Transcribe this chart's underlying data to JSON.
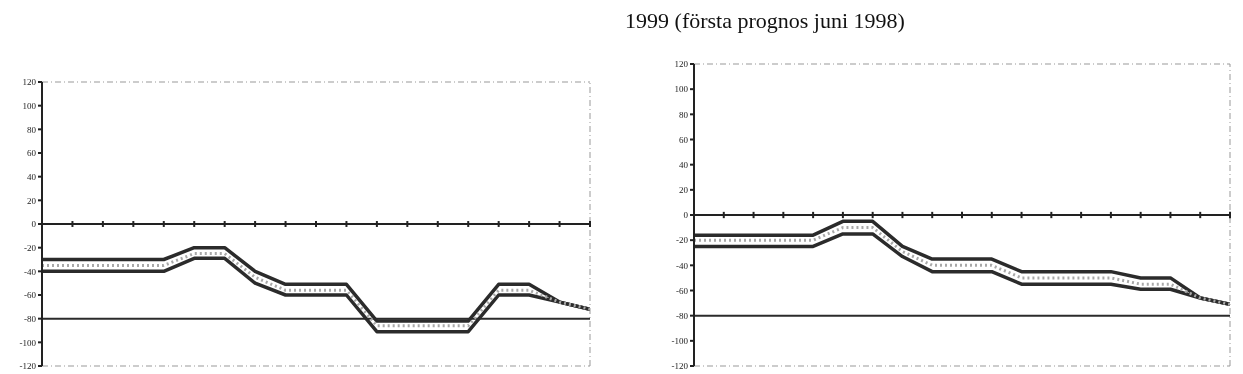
{
  "chart_data": [
    {
      "type": "line",
      "categories": [
        null,
        null,
        null,
        null,
        null,
        null,
        null,
        null,
        null,
        null,
        null,
        null,
        null,
        null,
        null,
        null,
        null,
        null,
        null
      ],
      "series": [
        {
          "color": "#2b2b2b",
          "values": [
            -30,
            -30,
            -30,
            -30,
            -30,
            -20,
            -20,
            -40,
            -51,
            -51,
            -51,
            -82,
            -82,
            -82,
            -82,
            -51,
            -51,
            -66,
            -72
          ]
        },
        {
          "color": "#2b2b2b",
          "values": [
            -40,
            -40,
            -40,
            -40,
            -40,
            -29,
            -29,
            -50,
            -60,
            -60,
            -60,
            -91,
            -91,
            -91,
            -91,
            -60,
            -60,
            -66,
            -72
          ]
        },
        {
          "color": "#a8a8a8",
          "line_style": "dotted",
          "values": [
            -35,
            -35,
            -35,
            -35,
            -35,
            -25,
            -25,
            -45,
            -56,
            -56,
            -56,
            -86,
            -86,
            -86,
            -86,
            -56,
            -56,
            -66,
            -72
          ]
        }
      ],
      "ylim": [
        -120,
        120
      ],
      "yticks": [
        -120,
        -100,
        -80,
        -60,
        -40,
        -20,
        0,
        20,
        40,
        60,
        80,
        100,
        120
      ],
      "ref_lines": [
        {
          "axis": "y",
          "value": -80,
          "color": "#2b2b2b"
        }
      ],
      "tick_labels": "y",
      "marker": "none",
      "grid": false,
      "legend": false
    },
    {
      "type": "line",
      "title": "1999 (första prognos juni 1998)",
      "categories": [
        null,
        null,
        null,
        null,
        null,
        null,
        null,
        null,
        null,
        null,
        null,
        null,
        null,
        null,
        null,
        null,
        null,
        null,
        null
      ],
      "series": [
        {
          "color": "#2b2b2b",
          "values": [
            -16,
            -16,
            -16,
            -16,
            -16,
            -5,
            -5,
            -25,
            -35,
            -35,
            -35,
            -45,
            -45,
            -45,
            -45,
            -50,
            -50,
            -66,
            -71
          ]
        },
        {
          "color": "#2b2b2b",
          "values": [
            -25,
            -25,
            -25,
            -25,
            -25,
            -15,
            -15,
            -33,
            -45,
            -45,
            -45,
            -55,
            -55,
            -55,
            -55,
            -59,
            -59,
            -66,
            -71
          ]
        },
        {
          "color": "#a8a8a8",
          "line_style": "dotted",
          "values": [
            -20,
            -20,
            -20,
            -20,
            -20,
            -10,
            -10,
            -29,
            -40,
            -40,
            -40,
            -50,
            -50,
            -50,
            -50,
            -55,
            -55,
            -66,
            -71
          ]
        }
      ],
      "ylim": [
        -120,
        120
      ],
      "yticks": [
        -120,
        -100,
        -80,
        -60,
        -40,
        -20,
        0,
        20,
        40,
        60,
        80,
        100,
        120
      ],
      "ref_lines": [
        {
          "axis": "y",
          "value": -80,
          "color": "#2b2b2b"
        }
      ],
      "tick_labels": "y",
      "marker": "none",
      "grid": false,
      "legend": false
    }
  ]
}
